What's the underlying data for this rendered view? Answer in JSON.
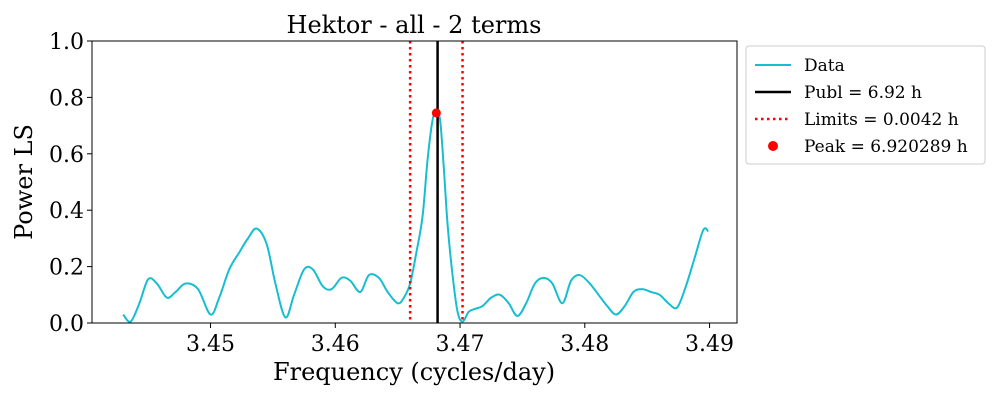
{
  "chart_data": {
    "type": "line",
    "title": "Hektor - all - 2 terms",
    "xlabel": "Frequency (cycles/day)",
    "ylabel": "Power LS",
    "xlim": [
      3.4405,
      3.4922
    ],
    "ylim": [
      0.0,
      1.0
    ],
    "xticks": [
      3.45,
      3.46,
      3.47,
      3.48,
      3.49
    ],
    "xtick_labels": [
      "3.45",
      "3.46",
      "3.47",
      "3.48",
      "3.49"
    ],
    "yticks": [
      0.0,
      0.2,
      0.4,
      0.6,
      0.8,
      1.0
    ],
    "ytick_labels": [
      "0.0",
      "0.2",
      "0.4",
      "0.6",
      "0.8",
      "1.0"
    ],
    "grid": false,
    "legend_position": "outside-right-top",
    "series": [
      {
        "name": "Data",
        "color": "#17becf",
        "x": [
          3.443,
          3.4436,
          3.4443,
          3.445,
          3.4457,
          3.4465,
          3.4472,
          3.448,
          3.449,
          3.45,
          3.4507,
          3.4515,
          3.4523,
          3.453,
          3.4537,
          3.4545,
          3.4552,
          3.456,
          3.4567,
          3.4575,
          3.4582,
          3.459,
          3.4597,
          3.4605,
          3.4612,
          3.462,
          3.4627,
          3.4635,
          3.4642,
          3.465,
          3.4655,
          3.466,
          3.4665,
          3.467,
          3.4674,
          3.4678,
          3.4681,
          3.4684,
          3.4687,
          3.469,
          3.4694,
          3.4698,
          3.4702,
          3.4707,
          3.4712,
          3.4718,
          3.4725,
          3.4732,
          3.4739,
          3.4746,
          3.4753,
          3.476,
          3.4767,
          3.4774,
          3.4782,
          3.4789,
          3.4796,
          3.4804,
          3.4811,
          3.4818,
          3.4825,
          3.4832,
          3.4839,
          3.4846,
          3.4853,
          3.486,
          3.4867,
          3.4874,
          3.4881,
          3.4888,
          3.4895,
          3.4899
        ],
        "y": [
          0.03,
          0.005,
          0.07,
          0.155,
          0.14,
          0.09,
          0.11,
          0.14,
          0.12,
          0.03,
          0.09,
          0.19,
          0.25,
          0.3,
          0.335,
          0.28,
          0.14,
          0.02,
          0.1,
          0.19,
          0.19,
          0.13,
          0.12,
          0.16,
          0.15,
          0.11,
          0.17,
          0.16,
          0.11,
          0.07,
          0.09,
          0.14,
          0.25,
          0.38,
          0.58,
          0.72,
          0.75,
          0.72,
          0.55,
          0.35,
          0.17,
          0.04,
          0.005,
          0.04,
          0.05,
          0.06,
          0.09,
          0.1,
          0.07,
          0.025,
          0.07,
          0.14,
          0.16,
          0.14,
          0.07,
          0.15,
          0.17,
          0.14,
          0.1,
          0.06,
          0.03,
          0.06,
          0.11,
          0.12,
          0.11,
          0.1,
          0.07,
          0.055,
          0.13,
          0.23,
          0.33,
          0.325
        ]
      }
    ],
    "vlines": [
      {
        "name": "Publ = 6.92 h",
        "x": 3.4682,
        "color": "#000000",
        "style": "solid"
      },
      {
        "name": "Limits = 0.0042 h",
        "x": [
          3.466,
          3.4702
        ],
        "color": "#ff0000",
        "style": "dotted"
      }
    ],
    "points": [
      {
        "name": "Peak = 6.920289 h",
        "x": 3.4681,
        "y": 0.745,
        "color": "#ff0000"
      }
    ],
    "legend": [
      "Data",
      "Publ = 6.92 h",
      "Limits = 0.0042 h",
      "Peak = 6.920289 h"
    ]
  }
}
